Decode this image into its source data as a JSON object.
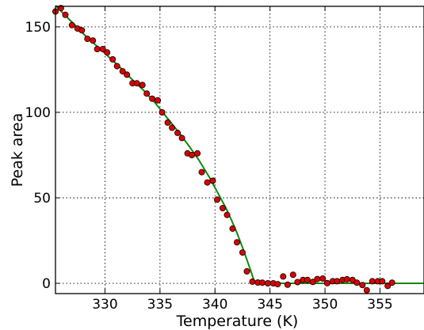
{
  "chart_data": {
    "type": "scatter",
    "xlabel": "Temperature (K)",
    "ylabel": "Peak area",
    "xlim": [
      325.5,
      359
    ],
    "ylim": [
      -6,
      162
    ],
    "xticks": [
      330,
      335,
      340,
      345,
      350,
      355
    ],
    "yticks": [
      0,
      50,
      100,
      150
    ],
    "grid": true,
    "colors": {
      "points": "#dd0000",
      "point_edge": "#000000",
      "fit_line": "#118811"
    },
    "series": [
      {
        "kind": "points",
        "points": [
          [
            325.5,
            159
          ],
          [
            326.0,
            161
          ],
          [
            326.4,
            157
          ],
          [
            327.0,
            151
          ],
          [
            327.5,
            149
          ],
          [
            327.9,
            148
          ],
          [
            328.4,
            143
          ],
          [
            328.9,
            142
          ],
          [
            329.3,
            137
          ],
          [
            329.8,
            137
          ],
          [
            330.2,
            135
          ],
          [
            330.7,
            131
          ],
          [
            331.1,
            127
          ],
          [
            331.6,
            124
          ],
          [
            332.0,
            122
          ],
          [
            332.5,
            117
          ],
          [
            332.9,
            117
          ],
          [
            333.4,
            116
          ],
          [
            333.8,
            111
          ],
          [
            334.3,
            108
          ],
          [
            334.8,
            107
          ],
          [
            335.2,
            100
          ],
          [
            335.7,
            94
          ],
          [
            336.1,
            91
          ],
          [
            336.6,
            88
          ],
          [
            337.0,
            85
          ],
          [
            337.5,
            76
          ],
          [
            337.9,
            75
          ],
          [
            338.4,
            76
          ],
          [
            338.8,
            65
          ],
          [
            339.3,
            59
          ],
          [
            339.8,
            60
          ],
          [
            340.2,
            49
          ],
          [
            340.7,
            44
          ],
          [
            341.1,
            40
          ],
          [
            341.6,
            32
          ],
          [
            342.0,
            24
          ],
          [
            342.5,
            18
          ],
          [
            342.9,
            7
          ],
          [
            343.4,
            1
          ],
          [
            343.9,
            0.5
          ],
          [
            344.3,
            0.4
          ],
          [
            344.8,
            0
          ],
          [
            345.3,
            0
          ],
          [
            345.7,
            -0.5
          ],
          [
            346.2,
            4
          ],
          [
            346.6,
            -0.8
          ],
          [
            347.1,
            5
          ],
          [
            347.5,
            0.7
          ],
          [
            348.0,
            2
          ],
          [
            348.4,
            2
          ],
          [
            348.9,
            0.8
          ],
          [
            349.3,
            2.5
          ],
          [
            349.8,
            2.8
          ],
          [
            350.2,
            0.1
          ],
          [
            350.7,
            1.2
          ],
          [
            351.1,
            1.2
          ],
          [
            351.6,
            2
          ],
          [
            352.0,
            2.4
          ],
          [
            352.5,
            2
          ],
          [
            352.9,
            0.4
          ],
          [
            353.4,
            -1
          ],
          [
            353.8,
            -4
          ],
          [
            354.3,
            1.2
          ],
          [
            354.8,
            1.2
          ],
          [
            355.2,
            1.2
          ],
          [
            355.7,
            -1.5
          ],
          [
            356.1,
            0.4
          ]
        ]
      },
      {
        "kind": "fit",
        "points": [
          [
            325.5,
            162.5
          ],
          [
            326.5,
            156
          ],
          [
            327.5,
            149.5
          ],
          [
            328.5,
            143
          ],
          [
            329.5,
            137.5
          ],
          [
            330.5,
            131.5
          ],
          [
            331.5,
            125.5
          ],
          [
            332.5,
            119
          ],
          [
            333.5,
            113
          ],
          [
            334.5,
            106
          ],
          [
            335.5,
            98
          ],
          [
            336.5,
            90
          ],
          [
            337.5,
            81.5
          ],
          [
            338.5,
            72.5
          ],
          [
            339.5,
            62
          ],
          [
            340.5,
            50
          ],
          [
            341.0,
            44
          ],
          [
            341.5,
            37
          ],
          [
            342.0,
            29.5
          ],
          [
            342.5,
            21
          ],
          [
            343.0,
            12
          ],
          [
            343.4,
            4.5
          ],
          [
            343.6,
            0.5
          ],
          [
            344.0,
            0
          ],
          [
            359,
            0
          ]
        ]
      }
    ]
  }
}
